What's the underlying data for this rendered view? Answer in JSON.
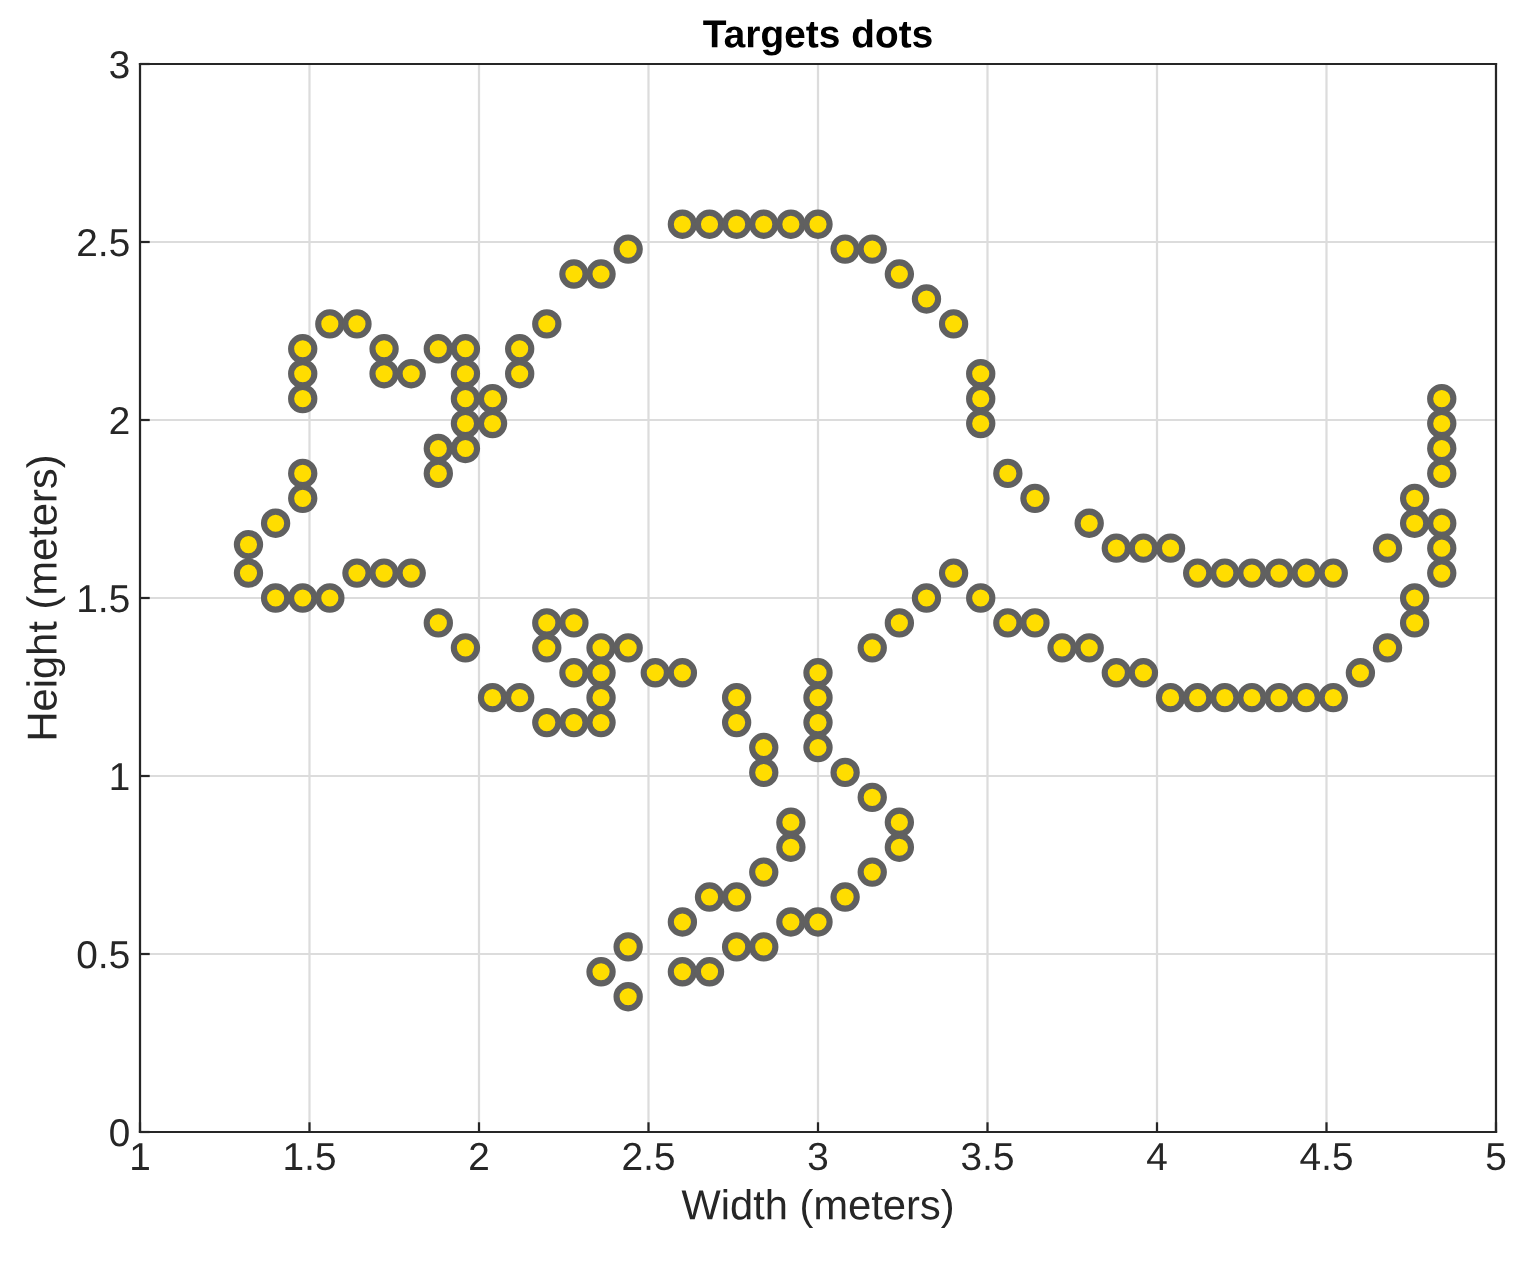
{
  "chart_data": {
    "type": "scatter",
    "title": "Targets dots",
    "xlabel": "Width (meters)",
    "ylabel": "Height (meters)",
    "xlim": [
      1,
      5
    ],
    "xticks": [
      1,
      1.5,
      2,
      2.5,
      3,
      3.5,
      4,
      4.5,
      5
    ],
    "ylim": [
      0,
      3
    ],
    "yticks": [
      0,
      0.5,
      1,
      1.5,
      2,
      2.5,
      3
    ],
    "grid": true,
    "marker": "circle",
    "series": [
      {
        "color": "#ffdd00",
        "x": [
          1.32,
          1.32,
          1.4,
          1.4,
          1.48,
          1.48,
          1.48,
          1.48,
          1.48,
          1.48,
          1.56,
          1.56,
          1.64,
          1.64,
          1.72,
          1.72,
          1.72,
          1.8,
          1.8,
          1.88,
          1.88,
          1.88,
          1.88,
          1.96,
          1.96,
          1.96,
          1.96,
          1.96,
          1.96,
          2.04,
          2.04,
          2.04,
          2.12,
          2.12,
          2.12,
          2.2,
          2.2,
          2.2,
          2.2,
          2.28,
          2.28,
          2.28,
          2.28,
          2.36,
          2.36,
          2.36,
          2.36,
          2.36,
          2.36,
          2.44,
          2.44,
          2.44,
          2.44,
          2.52,
          2.6,
          2.6,
          2.6,
          2.6,
          2.68,
          2.68,
          2.68,
          2.76,
          2.76,
          2.76,
          2.76,
          2.76,
          2.84,
          2.84,
          2.84,
          2.84,
          2.84,
          2.92,
          2.92,
          2.92,
          2.92,
          3.0,
          3.0,
          3.0,
          3.0,
          3.0,
          3.0,
          3.08,
          3.08,
          3.08,
          3.16,
          3.16,
          3.16,
          3.16,
          3.24,
          3.24,
          3.24,
          3.24,
          3.32,
          3.32,
          3.4,
          3.4,
          3.48,
          3.48,
          3.48,
          3.48,
          3.56,
          3.56,
          3.64,
          3.64,
          3.72,
          3.8,
          3.8,
          3.88,
          3.88,
          3.96,
          3.96,
          4.04,
          4.04,
          4.12,
          4.12,
          4.2,
          4.2,
          4.28,
          4.28,
          4.36,
          4.36,
          4.44,
          4.44,
          4.52,
          4.52,
          4.6,
          4.68,
          4.68,
          4.76,
          4.76,
          4.76,
          4.76,
          4.84,
          4.84,
          4.84,
          4.84,
          4.84,
          4.84,
          4.84
        ],
        "values": [
          1.65,
          1.57,
          1.71,
          1.5,
          1.78,
          1.85,
          2.06,
          2.13,
          2.2,
          1.5,
          2.27,
          1.5,
          2.27,
          1.57,
          2.2,
          2.13,
          1.57,
          2.13,
          1.57,
          2.2,
          1.92,
          1.85,
          1.43,
          2.2,
          2.13,
          2.06,
          1.99,
          1.92,
          1.36,
          2.06,
          1.99,
          1.22,
          2.2,
          2.13,
          1.22,
          2.27,
          1.43,
          1.36,
          1.15,
          2.41,
          1.43,
          1.29,
          1.15,
          2.41,
          1.36,
          1.29,
          1.22,
          1.15,
          0.45,
          2.48,
          1.36,
          0.52,
          0.38,
          1.29,
          2.55,
          1.29,
          0.59,
          0.45,
          2.55,
          0.66,
          0.45,
          2.55,
          1.22,
          1.15,
          0.66,
          0.52,
          2.55,
          1.08,
          1.01,
          0.73,
          0.52,
          2.55,
          0.87,
          0.8,
          0.59,
          2.55,
          1.29,
          1.22,
          1.15,
          1.08,
          0.59,
          2.48,
          1.01,
          0.66,
          2.48,
          1.36,
          0.94,
          0.73,
          2.41,
          1.43,
          0.87,
          0.8,
          2.34,
          1.5,
          2.27,
          1.57,
          2.13,
          2.06,
          1.99,
          1.5,
          1.85,
          1.43,
          1.78,
          1.43,
          1.36,
          1.71,
          1.36,
          1.64,
          1.29,
          1.64,
          1.29,
          1.64,
          1.22,
          1.57,
          1.22,
          1.57,
          1.22,
          1.57,
          1.22,
          1.57,
          1.22,
          1.57,
          1.22,
          1.57,
          1.22,
          1.29,
          1.64,
          1.36,
          1.78,
          1.71,
          1.5,
          1.43,
          2.06,
          1.99,
          1.92,
          1.85,
          1.71,
          1.64,
          1.57
        ]
      }
    ]
  }
}
